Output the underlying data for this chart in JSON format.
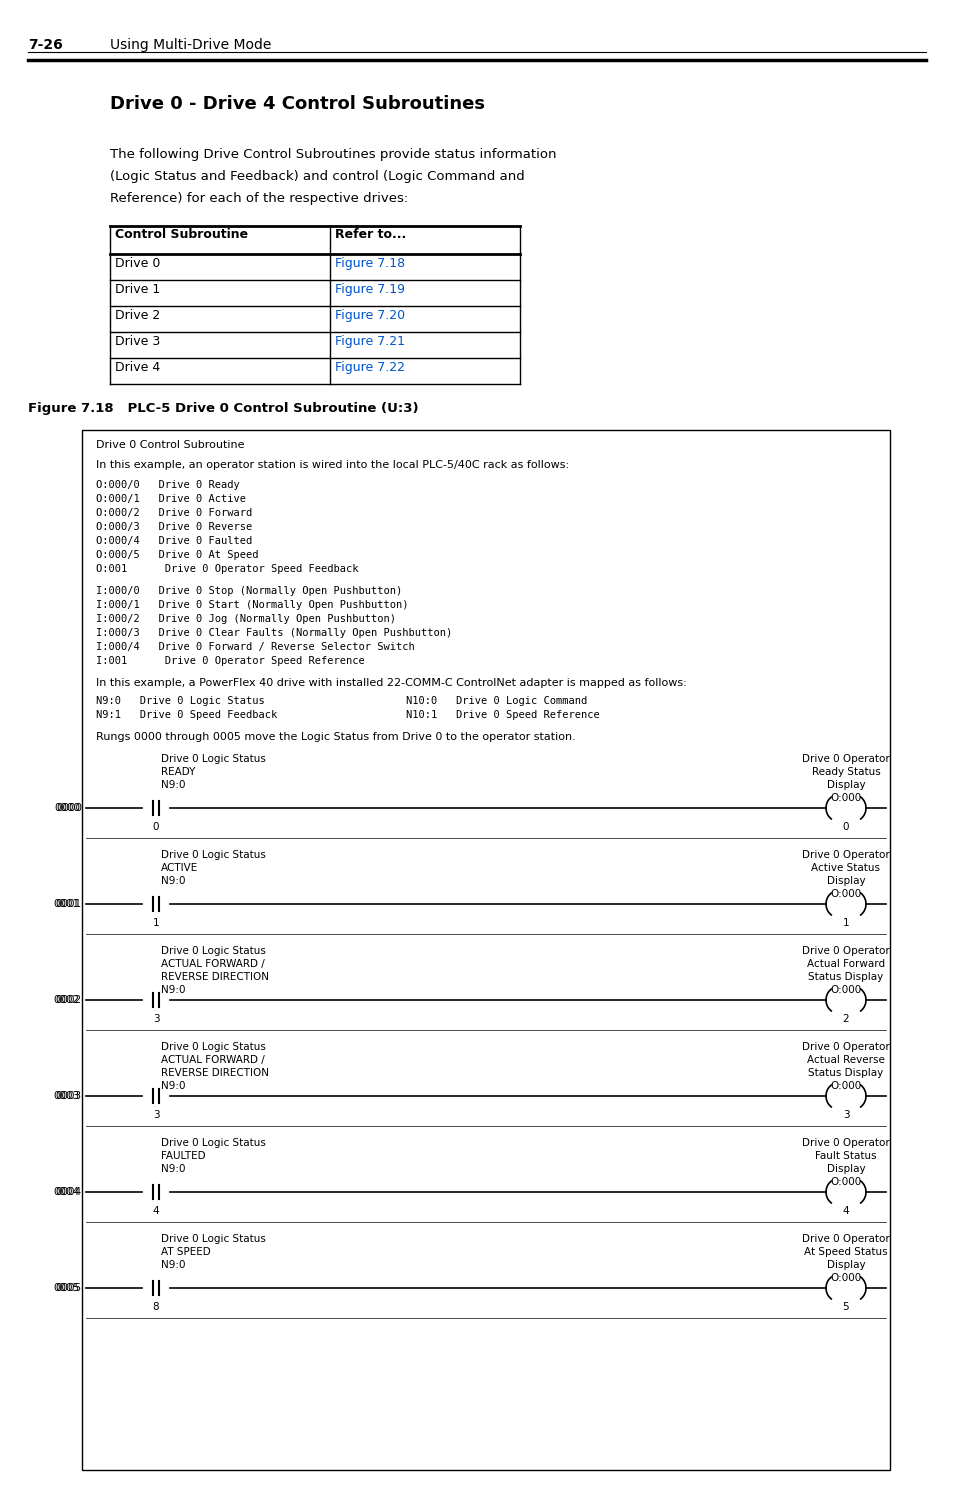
{
  "page_header_num": "7-26",
  "page_header_text": "Using Multi-Drive Mode",
  "section_title": "Drive 0 - Drive 4 Control Subroutines",
  "intro_text_lines": [
    "The following Drive Control Subroutines provide status information",
    "(Logic Status and Feedback) and control (Logic Command and",
    "Reference) for each of the respective drives:"
  ],
  "table_headers": [
    "Control Subroutine",
    "Refer to..."
  ],
  "table_rows": [
    [
      "Drive 0",
      "Figure 7.18"
    ],
    [
      "Drive 1",
      "Figure 7.19"
    ],
    [
      "Drive 2",
      "Figure 7.20"
    ],
    [
      "Drive 3",
      "Figure 7.21"
    ],
    [
      "Drive 4",
      "Figure 7.22"
    ]
  ],
  "figure_label": "Figure 7.18   PLC-5 Drive 0 Control Subroutine (U:3)",
  "box_title": "Drive 0 Control Subroutine",
  "box_intro": "In this example, an operator station is wired into the local PLC-5/40C rack as follows:",
  "output_lines": [
    "O:000/0   Drive 0 Ready",
    "O:000/1   Drive 0 Active",
    "O:000/2   Drive 0 Forward",
    "O:000/3   Drive 0 Reverse",
    "O:000/4   Drive 0 Faulted",
    "O:000/5   Drive 0 At Speed",
    "O:001      Drive 0 Operator Speed Feedback"
  ],
  "input_lines": [
    "I:000/0   Drive 0 Stop (Normally Open Pushbutton)",
    "I:000/1   Drive 0 Start (Normally Open Pushbutton)",
    "I:000/2   Drive 0 Jog (Normally Open Pushbutton)",
    "I:000/3   Drive 0 Clear Faults (Normally Open Pushbutton)",
    "I:000/4   Drive 0 Forward / Reverse Selector Switch",
    "I:001      Drive 0 Operator Speed Reference"
  ],
  "powerflex_intro": "In this example, a PowerFlex 40 drive with installed 22-COMM-C ControlNet adapter is mapped as follows:",
  "mapping_left": [
    "N9:0   Drive 0 Logic Status",
    "N9:1   Drive 0 Speed Feedback"
  ],
  "mapping_right": [
    "N10:0   Drive 0 Logic Command",
    "N10:1   Drive 0 Speed Reference"
  ],
  "rungs_text": "Rungs 0000 through 0005 move the Logic Status from Drive 0 to the operator station.",
  "rungs": [
    {
      "num": "0000",
      "label_top": "Drive 0 Logic Status",
      "label_sub": [
        "READY"
      ],
      "contact_addr": "N9:0",
      "contact_bit": "0",
      "coil_addr": "O:000",
      "coil_bit": "0",
      "coil_label": [
        "Drive 0 Operator",
        "Ready Status",
        "Display"
      ]
    },
    {
      "num": "0001",
      "label_top": "Drive 0 Logic Status",
      "label_sub": [
        "ACTIVE"
      ],
      "contact_addr": "N9:0",
      "contact_bit": "1",
      "coil_addr": "O:000",
      "coil_bit": "1",
      "coil_label": [
        "Drive 0 Operator",
        "Active Status",
        "Display"
      ]
    },
    {
      "num": "0002",
      "label_top": "Drive 0 Logic Status",
      "label_sub": [
        "ACTUAL FORWARD /",
        "REVERSE DIRECTION"
      ],
      "contact_addr": "N9:0",
      "contact_bit": "3",
      "coil_addr": "O:000",
      "coil_bit": "2",
      "coil_label": [
        "Drive 0 Operator",
        "Actual Forward",
        "Status Display"
      ]
    },
    {
      "num": "0003",
      "label_top": "Drive 0 Logic Status",
      "label_sub": [
        "ACTUAL FORWARD /",
        "REVERSE DIRECTION"
      ],
      "contact_addr": "N9:0",
      "contact_bit": "3",
      "coil_addr": "O:000",
      "coil_bit": "3",
      "coil_label": [
        "Drive 0 Operator",
        "Actual Reverse",
        "Status Display"
      ]
    },
    {
      "num": "0004",
      "label_top": "Drive 0 Logic Status",
      "label_sub": [
        "FAULTED"
      ],
      "contact_addr": "N9:0",
      "contact_bit": "4",
      "coil_addr": "O:000",
      "coil_bit": "4",
      "coil_label": [
        "Drive 0 Operator",
        "Fault Status",
        "Display"
      ]
    },
    {
      "num": "0005",
      "label_top": "Drive 0 Logic Status",
      "label_sub": [
        "AT SPEED"
      ],
      "contact_addr": "N9:0",
      "contact_bit": "8",
      "coil_addr": "O:000",
      "coil_bit": "5",
      "coil_label": [
        "Drive 0 Operator",
        "At Speed Status",
        "Display"
      ]
    }
  ],
  "link_color": "#0055CC",
  "bg_color": "#FFFFFF",
  "text_color": "#000000"
}
